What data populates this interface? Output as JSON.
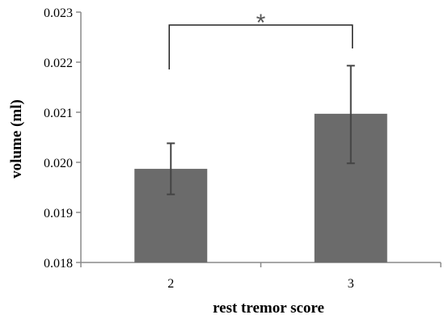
{
  "chart_data": {
    "type": "bar",
    "categories": [
      "2",
      "3"
    ],
    "values": [
      0.01987,
      0.02097
    ],
    "error_low": [
      0.01936,
      0.01998
    ],
    "error_high": [
      0.02038,
      0.02193
    ],
    "xlabel": "rest tremor score",
    "ylabel": "volume (ml)",
    "ylim": [
      0.018,
      0.023
    ],
    "yticks": [
      "0.018",
      "0.019",
      "0.020",
      "0.021",
      "0.022",
      "0.023"
    ],
    "significance_marker": "*",
    "bar_color": "#6b6b6b",
    "grid": false
  }
}
